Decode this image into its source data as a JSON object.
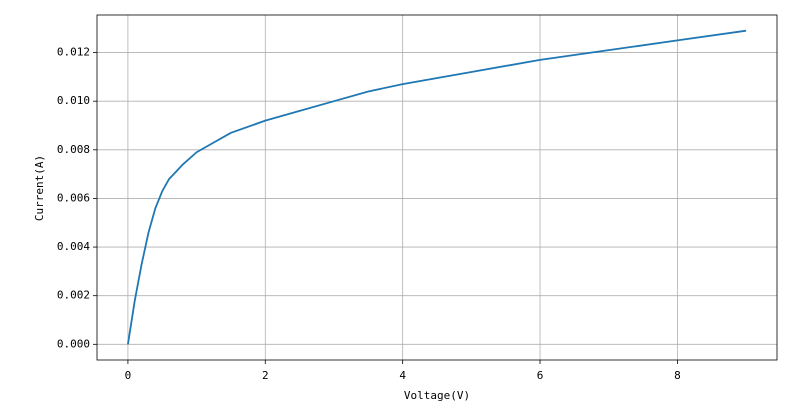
{
  "chart_data": {
    "type": "line",
    "xlabel": "Voltage(V)",
    "ylabel": "Current(A)",
    "x": [
      0,
      0.1,
      0.2,
      0.3,
      0.4,
      0.5,
      0.6,
      0.7,
      0.8,
      1.0,
      1.25,
      1.5,
      2,
      2.5,
      3,
      3.5,
      4,
      5,
      6,
      7,
      8,
      9
    ],
    "series": [
      {
        "name": "Current",
        "color": "#1f77b4",
        "values": [
          0,
          0.0018,
          0.0033,
          0.0046,
          0.0056,
          0.0063,
          0.0068,
          0.0071,
          0.0074,
          0.0079,
          0.0083,
          0.0087,
          0.0092,
          0.0096,
          0.01,
          0.0104,
          0.0107,
          0.0112,
          0.0117,
          0.0121,
          0.0125,
          0.0129
        ]
      }
    ],
    "xlim": [
      -0.45,
      9.45
    ],
    "xticks": [
      0,
      2,
      4,
      6,
      8
    ],
    "ylim": [
      -0.000645,
      0.013545
    ],
    "yticks": [
      {
        "value": 0,
        "label": "0.000"
      },
      {
        "value": 0.002,
        "label": "0.002"
      },
      {
        "value": 0.004,
        "label": "0.004"
      },
      {
        "value": 0.006,
        "label": "0.006"
      },
      {
        "value": 0.008,
        "label": "0.008"
      },
      {
        "value": 0.01,
        "label": "0.010"
      },
      {
        "value": 0.012,
        "label": "0.012"
      }
    ],
    "grid": true
  }
}
